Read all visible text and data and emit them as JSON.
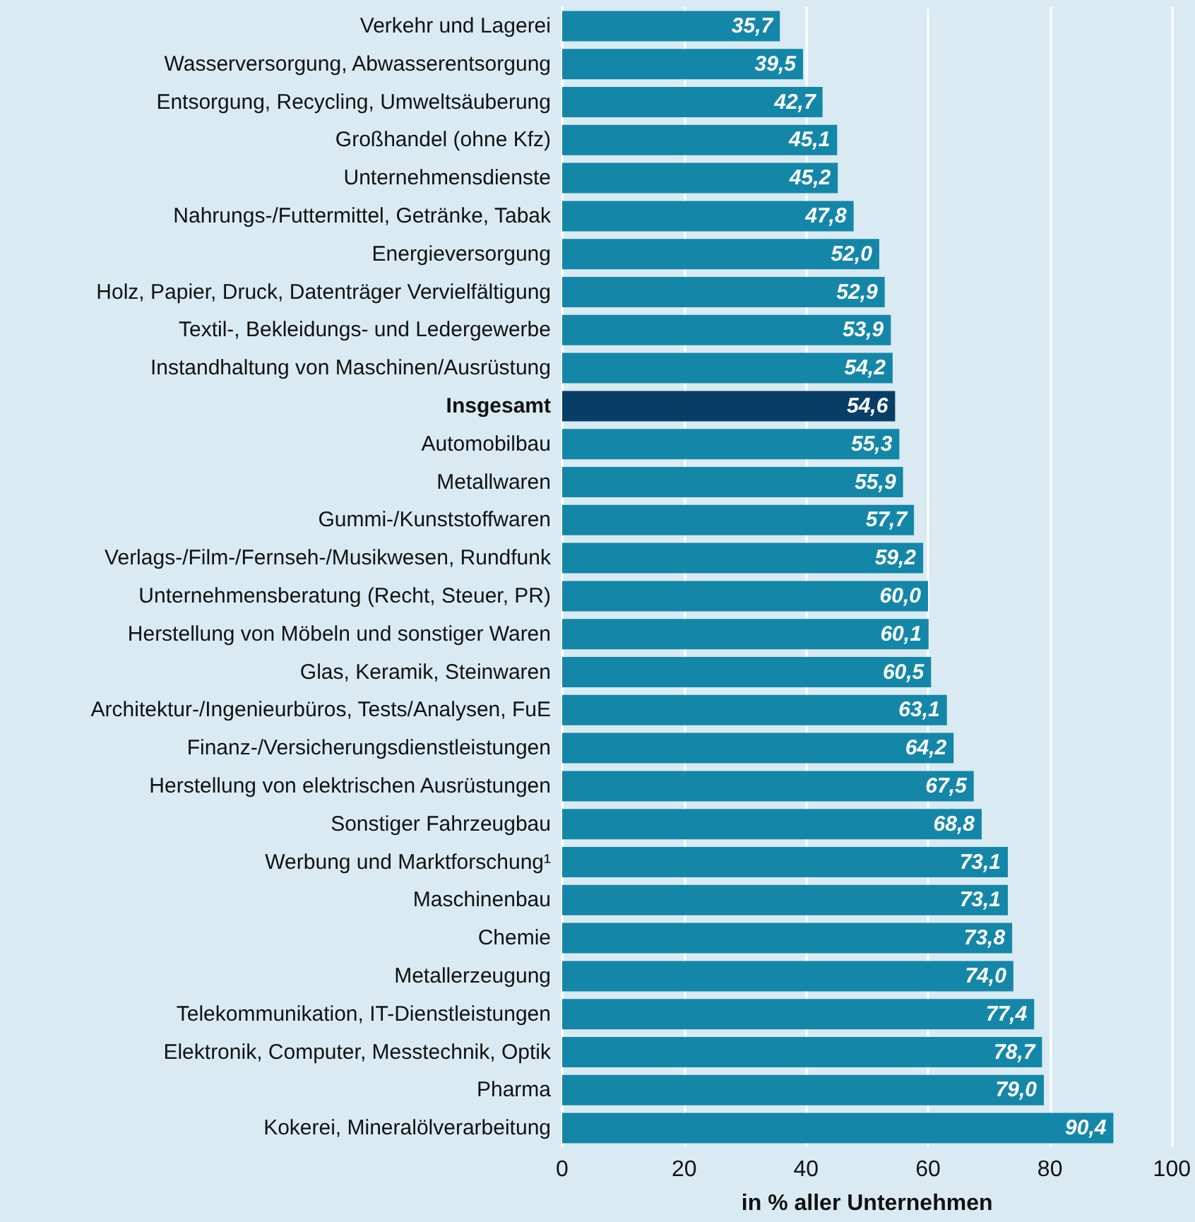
{
  "chart_data": {
    "type": "bar",
    "orientation": "horizontal",
    "xlabel": "in % aller Unternehmen",
    "categories": [
      "Verkehr und Lagerei",
      "Wasserversorgung, Abwasserentsorgung",
      "Entsorgung, Recycling, Umweltsäuberung",
      "Großhandel (ohne Kfz)",
      "Unternehmensdienste",
      "Nahrungs-/Futtermittel, Getränke, Tabak",
      "Energieversorgung",
      "Holz, Papier, Druck, Datenträger Vervielfältigung",
      "Textil-, Bekleidungs- und Ledergewerbe",
      "Instandhaltung von Maschinen/Ausrüstung",
      "Insgesamt",
      "Automobilbau",
      "Metallwaren",
      "Gummi-/Kunststoffwaren",
      "Verlags-/Film-/Fernseh-/Musikwesen, Rundfunk",
      "Unternehmensberatung (Recht, Steuer, PR)",
      "Herstellung von Möbeln und sonstiger Waren",
      "Glas, Keramik, Steinwaren",
      "Architektur-/Ingenieurbüros, Tests/Analysen, FuE",
      "Finanz-/Versicherungsdienstleistungen",
      "Herstellung von elektrischen Ausrüstungen",
      "Sonstiger Fahrzeugbau",
      "Werbung und Marktforschung¹",
      "Maschinenbau",
      "Chemie",
      "Metallerzeugung",
      "Telekommunikation, IT-Dienstleistungen",
      "Elektronik, Computer, Messtechnik, Optik",
      "Pharma",
      "Kokerei, Mineralölverarbeitung"
    ],
    "values": [
      35.7,
      39.5,
      42.7,
      45.1,
      45.2,
      47.8,
      52.0,
      52.9,
      53.9,
      54.2,
      54.6,
      55.3,
      55.9,
      57.7,
      59.2,
      60.0,
      60.1,
      60.5,
      63.1,
      64.2,
      67.5,
      68.8,
      73.1,
      73.1,
      73.8,
      74.0,
      77.4,
      78.7,
      79.0,
      90.4
    ],
    "value_labels": [
      "35,7",
      "39,5",
      "42,7",
      "45,1",
      "45,2",
      "47,8",
      "52,0",
      "52,9",
      "53,9",
      "54,2",
      "54,6",
      "55,3",
      "55,9",
      "57,7",
      "59,2",
      "60,0",
      "60,1",
      "60,5",
      "63,1",
      "64,2",
      "67,5",
      "68,8",
      "73,1",
      "73,1",
      "73,8",
      "74,0",
      "77,4",
      "78,7",
      "79,0",
      "90,4"
    ],
    "colors": [
      "#1487a8",
      "#1487a8",
      "#1487a8",
      "#1487a8",
      "#1487a8",
      "#1487a8",
      "#1487a8",
      "#1487a8",
      "#1487a8",
      "#1487a8",
      "#083d66",
      "#1487a8",
      "#1487a8",
      "#1487a8",
      "#1487a8",
      "#1487a8",
      "#1487a8",
      "#1487a8",
      "#1487a8",
      "#1487a8",
      "#1487a8",
      "#1487a8",
      "#1487a8",
      "#1487a8",
      "#1487a8",
      "#1487a8",
      "#1487a8",
      "#1487a8",
      "#1487a8",
      "#1487a8"
    ],
    "xlim": [
      0,
      100
    ],
    "xticks": [
      0,
      20,
      40,
      60,
      80,
      100
    ],
    "grid": "x"
  }
}
